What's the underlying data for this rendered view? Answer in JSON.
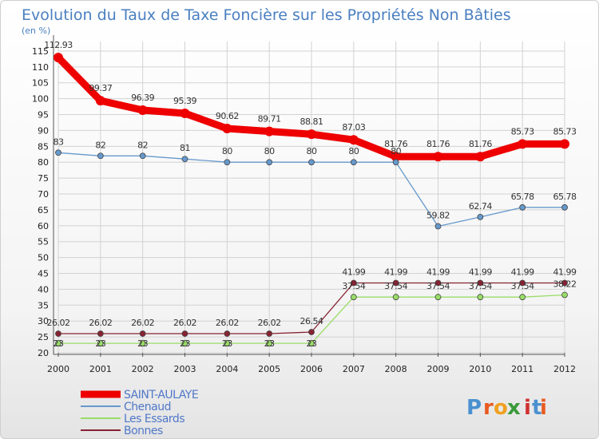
{
  "colors": {
    "title": "#4a7fc0",
    "legend_text": "#5078c8",
    "axis": "#555555",
    "grid": "#d2d2d2",
    "saint_aulaye": "#ee0000",
    "chenaud": "#6699cc",
    "les_essards": "#99dd66",
    "bonnes": "#882233"
  },
  "logo": {
    "text": "Proxiti"
  },
  "chart_data": {
    "type": "line",
    "title": "Evolution du Taux de Taxe Foncière sur les Propriétés Non Bâties",
    "subtitle": "(en %)",
    "xlabel": "",
    "ylabel": "",
    "x": [
      "2000",
      "2001",
      "2002",
      "2003",
      "2004",
      "2005",
      "2006",
      "2007",
      "2008",
      "2009",
      "2010",
      "2011",
      "2012"
    ],
    "yticks": [
      20,
      25,
      30,
      35,
      40,
      45,
      50,
      55,
      60,
      65,
      70,
      75,
      80,
      85,
      90,
      95,
      100,
      105,
      110,
      115
    ],
    "ylim": [
      20,
      118
    ],
    "grid": true,
    "legend_position": "bottom-left",
    "series": [
      {
        "name": "SAINT-AULAYE",
        "color": "#ee0000",
        "values": [
          112.93,
          99.37,
          96.39,
          95.39,
          90.62,
          89.71,
          88.81,
          87.03,
          81.76,
          81.76,
          81.76,
          85.73,
          85.73
        ],
        "labels": [
          "112.93",
          "99.37",
          "96.39",
          "95.39",
          "90.62",
          "89.71",
          "88.81",
          "87.03",
          "81.76",
          "81.76",
          "81.76",
          "85.73",
          "85.73"
        ]
      },
      {
        "name": "Chenaud",
        "color": "#6699cc",
        "values": [
          83,
          82,
          82,
          81,
          80,
          80,
          80,
          80,
          80,
          59.82,
          62.74,
          65.78,
          65.78
        ],
        "labels": [
          "83",
          "82",
          "82",
          "81",
          "80",
          "80",
          "80",
          "80",
          "80",
          "59.82",
          "62.74",
          "65.78",
          "65.78"
        ]
      },
      {
        "name": "Les Essards",
        "color": "#99dd66",
        "values": [
          23,
          23,
          23,
          23,
          23,
          23,
          23,
          37.54,
          37.54,
          37.54,
          37.54,
          37.54,
          38.22
        ],
        "labels": [
          "23",
          "23",
          "23",
          "23",
          "23",
          "23",
          "23",
          "37.54",
          "37.54",
          "37.54",
          "37.54",
          "37.54",
          "38.22"
        ]
      },
      {
        "name": "Bonnes",
        "color": "#882233",
        "values": [
          26.02,
          26.02,
          26.02,
          26.02,
          26.02,
          26.02,
          26.54,
          41.99,
          41.99,
          41.99,
          41.99,
          41.99,
          41.99
        ],
        "labels": [
          "26.02",
          "26.02",
          "26.02",
          "26.02",
          "26.02",
          "26.02",
          "26.54",
          "41.99",
          "41.99",
          "41.99",
          "41.99",
          "41.99",
          "41.99"
        ]
      }
    ]
  }
}
